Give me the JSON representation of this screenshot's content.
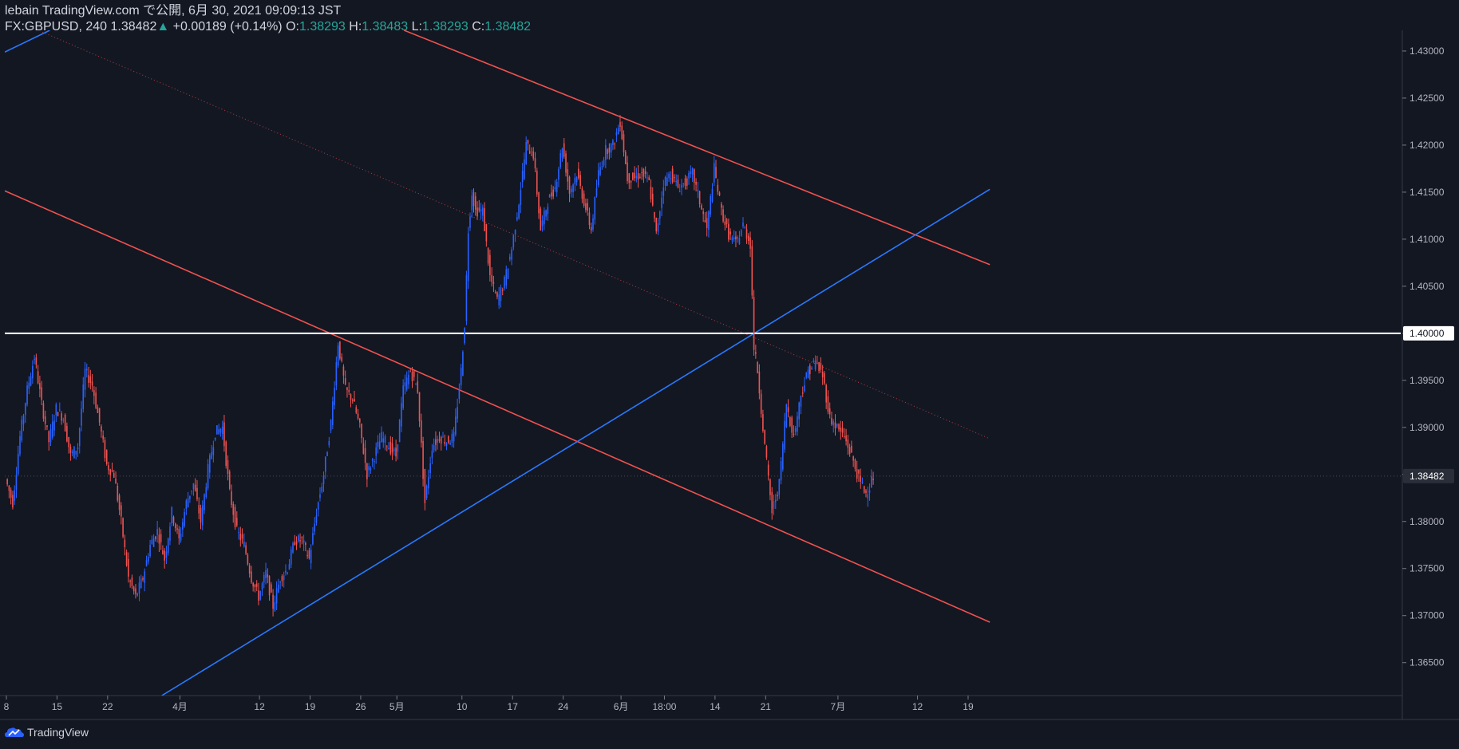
{
  "header": {
    "published": "lebain TradingView.com で公開, 6月 30, 2021 09:09:13 JST",
    "symbol": "FX:GBPUSD, 240",
    "last": "1.38482",
    "arrow": "▲",
    "change": "+0.00189 (+0.14%)",
    "o_label": "O:",
    "o_val": "1.38293",
    "h_label": "H:",
    "h_val": "1.38483",
    "l_label": "L:",
    "l_val": "1.38293",
    "c_label": "C:",
    "c_val": "1.38482"
  },
  "footer": {
    "brand": "TradingView"
  },
  "colors": {
    "background": "#131722",
    "up": "#2962ff",
    "down": "#ef5350",
    "trend_red": "#f0524f",
    "trend_blue": "#2979ff",
    "level": "#ffffff",
    "axis": "#787b86"
  },
  "chart_data": {
    "type": "line",
    "title": "",
    "ylim": [
      1.3615,
      1.4322
    ],
    "y_ticks": [
      "1.43000",
      "1.42500",
      "1.42000",
      "1.41500",
      "1.41000",
      "1.40500",
      "1.40000",
      "1.39500",
      "1.39000",
      "1.38500",
      "1.38000",
      "1.37500",
      "1.37000",
      "1.36500"
    ],
    "y_tick_values": [
      1.43,
      1.425,
      1.42,
      1.415,
      1.41,
      1.405,
      1.4,
      1.395,
      1.39,
      1.385,
      1.38,
      1.375,
      1.37,
      1.365
    ],
    "x_ticks": [
      {
        "label": "8",
        "day": 0
      },
      {
        "label": "15",
        "day": 7
      },
      {
        "label": "22",
        "day": 14
      },
      {
        "label": "4月",
        "day": 24
      },
      {
        "label": "12",
        "day": 35
      },
      {
        "label": "19",
        "day": 42
      },
      {
        "label": "26",
        "day": 49
      },
      {
        "label": "5月",
        "day": 54
      },
      {
        "label": "10",
        "day": 63
      },
      {
        "label": "17",
        "day": 70
      },
      {
        "label": "24",
        "day": 77
      },
      {
        "label": "6月",
        "day": 85
      },
      {
        "label": "18:00",
        "day": 91
      },
      {
        "label": "14",
        "day": 98
      },
      {
        "label": "21",
        "day": 105
      },
      {
        "label": "7月",
        "day": 115
      },
      {
        "label": "12",
        "day": 126
      },
      {
        "label": "19",
        "day": 133
      }
    ],
    "series": [
      {
        "values": [
          [
            0,
            1.3845
          ],
          [
            1,
            1.382
          ],
          [
            2,
            1.389
          ],
          [
            3,
            1.394
          ],
          [
            4,
            1.3975
          ],
          [
            5,
            1.3925
          ],
          [
            6,
            1.3885
          ],
          [
            7,
            1.392
          ],
          [
            8,
            1.391
          ],
          [
            9,
            1.387
          ],
          [
            10,
            1.388
          ],
          [
            11,
            1.396
          ],
          [
            12,
            1.3945
          ],
          [
            13,
            1.3905
          ],
          [
            14,
            1.386
          ],
          [
            15,
            1.385
          ],
          [
            16,
            1.38
          ],
          [
            17,
            1.374
          ],
          [
            18,
            1.372
          ],
          [
            19,
            1.374
          ],
          [
            20,
            1.3775
          ],
          [
            21,
            1.379
          ],
          [
            22,
            1.376
          ],
          [
            23,
            1.381
          ],
          [
            24,
            1.378
          ],
          [
            25,
            1.382
          ],
          [
            26,
            1.384
          ],
          [
            27,
            1.38
          ],
          [
            28,
            1.3855
          ],
          [
            29,
            1.3895
          ],
          [
            30,
            1.39
          ],
          [
            31,
            1.383
          ],
          [
            32,
            1.379
          ],
          [
            33,
            1.3775
          ],
          [
            34,
            1.374
          ],
          [
            35,
            1.372
          ],
          [
            36,
            1.3745
          ],
          [
            37,
            1.371
          ],
          [
            38,
            1.374
          ],
          [
            39,
            1.375
          ],
          [
            40,
            1.378
          ],
          [
            41,
            1.378
          ],
          [
            42,
            1.376
          ],
          [
            43,
            1.381
          ],
          [
            44,
            1.385
          ],
          [
            45,
            1.3905
          ],
          [
            46,
            1.399
          ],
          [
            47,
            1.394
          ],
          [
            48,
            1.393
          ],
          [
            49,
            1.39
          ],
          [
            50,
            1.385
          ],
          [
            51,
            1.387
          ],
          [
            52,
            1.389
          ],
          [
            53,
            1.388
          ],
          [
            54,
            1.387
          ],
          [
            55,
            1.394
          ],
          [
            56,
            1.396
          ],
          [
            57,
            1.394
          ],
          [
            58,
            1.382
          ],
          [
            59,
            1.388
          ],
          [
            60,
            1.389
          ],
          [
            61,
            1.3885
          ],
          [
            62,
            1.389
          ],
          [
            63,
            1.396
          ],
          [
            63.5,
            1.401
          ],
          [
            64,
            1.411
          ],
          [
            64.5,
            1.415
          ],
          [
            65,
            1.413
          ],
          [
            66,
            1.413
          ],
          [
            67,
            1.406
          ],
          [
            68,
            1.4035
          ],
          [
            69,
            1.4055
          ],
          [
            70,
            1.409
          ],
          [
            71,
            1.414
          ],
          [
            72,
            1.42
          ],
          [
            73,
            1.419
          ],
          [
            74,
            1.411
          ],
          [
            75,
            1.414
          ],
          [
            76,
            1.4155
          ],
          [
            77,
            1.42
          ],
          [
            78,
            1.415
          ],
          [
            79,
            1.417
          ],
          [
            80,
            1.414
          ],
          [
            81,
            1.411
          ],
          [
            82,
            1.417
          ],
          [
            83,
            1.4195
          ],
          [
            84,
            1.42
          ],
          [
            85,
            1.4225
          ],
          [
            86,
            1.4165
          ],
          [
            87,
            1.4165
          ],
          [
            88,
            1.417
          ],
          [
            89,
            1.416
          ],
          [
            90,
            1.4105
          ],
          [
            91,
            1.416
          ],
          [
            92,
            1.417
          ],
          [
            93,
            1.4155
          ],
          [
            94,
            1.416
          ],
          [
            95,
            1.417
          ],
          [
            96,
            1.414
          ],
          [
            97,
            1.411
          ],
          [
            98,
            1.4175
          ],
          [
            99,
            1.413
          ],
          [
            100,
            1.4105
          ],
          [
            101,
            1.4095
          ],
          [
            102,
            1.4115
          ],
          [
            103,
            1.4095
          ],
          [
            103.5,
            1.3985
          ],
          [
            104,
            1.396
          ],
          [
            105,
            1.388
          ],
          [
            106,
            1.381
          ],
          [
            107,
            1.384
          ],
          [
            108,
            1.3925
          ],
          [
            109,
            1.389
          ],
          [
            110,
            1.3935
          ],
          [
            111,
            1.396
          ],
          [
            112,
            1.397
          ],
          [
            113,
            1.3955
          ],
          [
            114,
            1.391
          ],
          [
            115,
            1.39
          ],
          [
            116,
            1.389
          ],
          [
            117,
            1.387
          ],
          [
            118,
            1.3845
          ],
          [
            119,
            1.383
          ],
          [
            120,
            1.3848
          ]
        ]
      }
    ],
    "last_price": 1.38482,
    "last_price_label": "1.38482",
    "level_label": "1.40000",
    "drawings": [
      {
        "type": "trendline",
        "color": "red",
        "from": [
          -1,
          1.4154
        ],
        "to": [
          136,
          1.3693
        ]
      },
      {
        "type": "trendline",
        "color": "red",
        "from": [
          55,
          1.4322
        ],
        "to": [
          136,
          1.4073
        ]
      },
      {
        "type": "trendline",
        "color": "blue",
        "from": [
          -1,
          1.4296
        ],
        "to": [
          6,
          1.4322
        ]
      },
      {
        "type": "trendline",
        "color": "blue",
        "from": [
          21.5,
          1.3615
        ],
        "to": [
          136,
          1.4153
        ]
      },
      {
        "type": "hline",
        "color": "white",
        "value": 1.4
      },
      {
        "type": "dotted",
        "color": "red",
        "from": [
          5,
          1.432
        ],
        "to": [
          136,
          1.3888
        ]
      }
    ]
  }
}
